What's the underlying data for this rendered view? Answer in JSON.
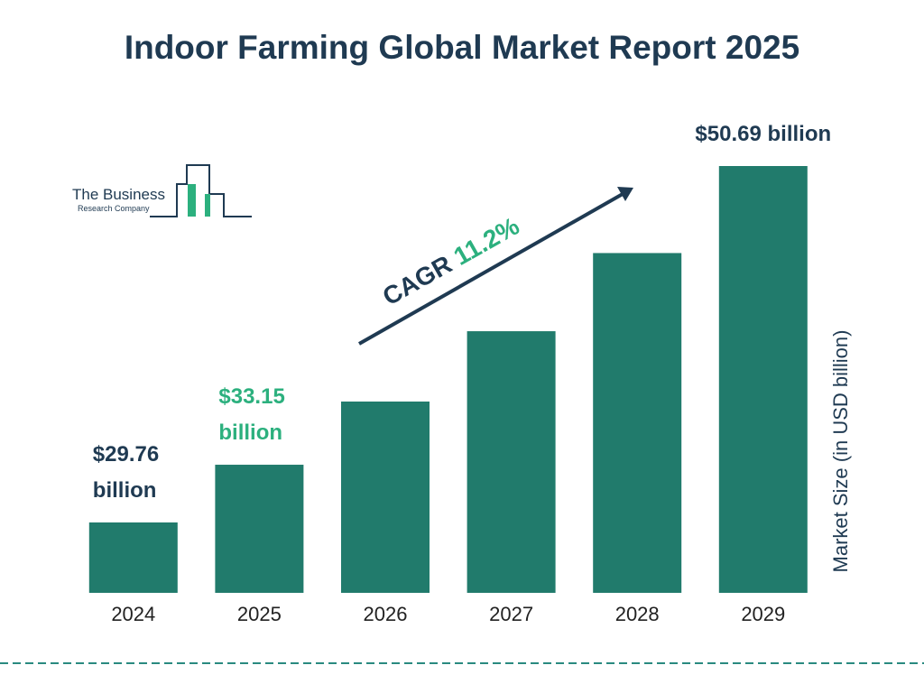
{
  "chart_data": {
    "type": "bar",
    "title": "Indoor Farming Global Market Report 2025",
    "categories": [
      "2024",
      "2025",
      "2026",
      "2027",
      "2028",
      "2029"
    ],
    "values": [
      29.76,
      33.15,
      36.86,
      40.99,
      45.58,
      50.69
    ],
    "value_labels": [
      "$29.76 billion",
      "$33.15 billion",
      null,
      null,
      null,
      "$50.69 billion"
    ],
    "color": "#217b6c",
    "y_axis_label": "Market Size (in USD billion)",
    "annotation": {
      "cagr_label": "CAGR",
      "cagr_value": "11.2%"
    },
    "logo": {
      "line1": "The Business",
      "line2": "Research Company"
    }
  }
}
